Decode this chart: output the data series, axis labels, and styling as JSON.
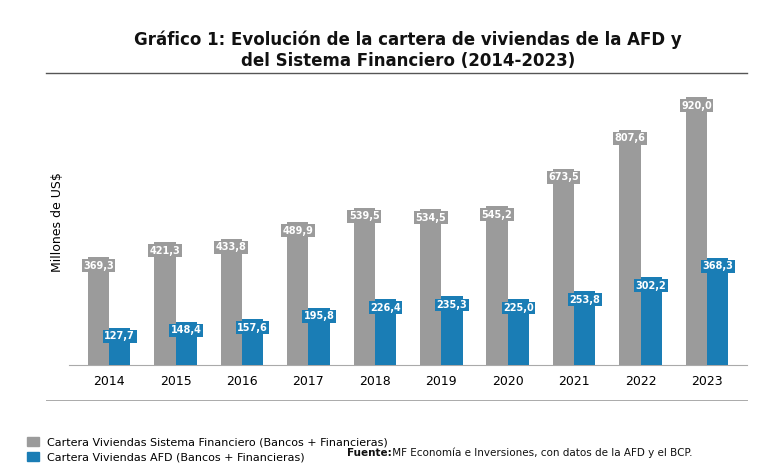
{
  "years": [
    2014,
    2015,
    2016,
    2017,
    2018,
    2019,
    2020,
    2021,
    2022,
    2023
  ],
  "sistema_financiero": [
    369.3,
    421.3,
    433.8,
    489.9,
    539.5,
    534.5,
    545.2,
    673.5,
    807.6,
    920.0
  ],
  "afd": [
    127.7,
    148.4,
    157.6,
    195.8,
    226.4,
    235.3,
    225.0,
    253.8,
    302.2,
    368.3
  ],
  "color_sistema": "#9b9b9b",
  "color_afd": "#1a7db5",
  "title_line1": "Gráfico 1: Evolución de la cartera de viviendas de la AFD y",
  "title_line2": "del Sistema Financiero (2014-2023)",
  "ylabel": "Millones de US$",
  "legend_sistema": "Cartera Viviendas Sistema Financiero (Bancos + Financieras)",
  "legend_afd": "Cartera Viviendas AFD (Bancos + Financieras)",
  "fuente_bold": "Fuente:",
  "fuente_text": " MF Economía e Inversiones, con datos de la AFD y el BCP.",
  "background_color": "#ffffff",
  "plot_bg_color": "#ffffff",
  "ylim": [
    0,
    980
  ],
  "bar_width": 0.32,
  "title_fontsize": 12,
  "label_fontsize": 7,
  "axis_fontsize": 9,
  "legend_fontsize": 8
}
